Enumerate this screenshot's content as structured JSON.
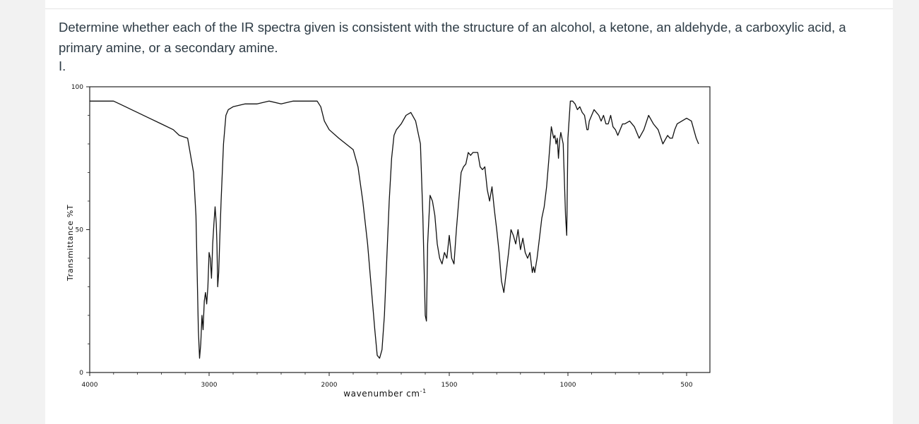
{
  "question": {
    "text": "Determine whether each of the IR spectra given is consistent with the structure of an alcohol, a ketone, an aldehyde, a carboxylic acid, a primary amine, or a secondary amine.",
    "part_label": "I."
  },
  "chart_data": {
    "type": "line",
    "title": "",
    "xlabel": "wavenumber cm",
    "xlabel_superscript": "-1",
    "ylabel": "Transmittance %T",
    "xlim": [
      4000,
      450
    ],
    "ylim": [
      0,
      100
    ],
    "x_tick_labels": [
      "4000",
      "3000",
      "2000",
      "1500",
      "1000",
      "500"
    ],
    "y_tick_labels": [
      "0",
      "50",
      "100"
    ],
    "x_axis_scale": "piecewise: 4000-2000 at half scale of 2000-450",
    "grid": false,
    "series": [
      {
        "points": [
          [
            4000,
            95
          ],
          [
            3900,
            95
          ],
          [
            3800,
            95
          ],
          [
            3750,
            94
          ],
          [
            3700,
            93
          ],
          [
            3650,
            92
          ],
          [
            3600,
            91
          ],
          [
            3500,
            89
          ],
          [
            3400,
            87
          ],
          [
            3300,
            85
          ],
          [
            3250,
            83
          ],
          [
            3180,
            82
          ],
          [
            3130,
            70
          ],
          [
            3110,
            55
          ],
          [
            3100,
            35
          ],
          [
            3090,
            15
          ],
          [
            3080,
            5
          ],
          [
            3070,
            10
          ],
          [
            3060,
            20
          ],
          [
            3050,
            15
          ],
          [
            3040,
            25
          ],
          [
            3030,
            28
          ],
          [
            3020,
            24
          ],
          [
            3010,
            30
          ],
          [
            3000,
            42
          ],
          [
            2990,
            40
          ],
          [
            2980,
            33
          ],
          [
            2970,
            45
          ],
          [
            2960,
            52
          ],
          [
            2950,
            58
          ],
          [
            2940,
            52
          ],
          [
            2935,
            45
          ],
          [
            2928,
            30
          ],
          [
            2920,
            35
          ],
          [
            2910,
            48
          ],
          [
            2900,
            60
          ],
          [
            2880,
            80
          ],
          [
            2860,
            90
          ],
          [
            2840,
            92
          ],
          [
            2800,
            93
          ],
          [
            2700,
            94
          ],
          [
            2600,
            94
          ],
          [
            2500,
            95
          ],
          [
            2400,
            94
          ],
          [
            2300,
            95
          ],
          [
            2200,
            95
          ],
          [
            2150,
            95
          ],
          [
            2100,
            95
          ],
          [
            2070,
            93
          ],
          [
            2040,
            88
          ],
          [
            2000,
            85
          ],
          [
            1960,
            82
          ],
          [
            1930,
            80
          ],
          [
            1900,
            78
          ],
          [
            1880,
            72
          ],
          [
            1860,
            60
          ],
          [
            1840,
            45
          ],
          [
            1820,
            25
          ],
          [
            1810,
            15
          ],
          [
            1800,
            6
          ],
          [
            1790,
            5
          ],
          [
            1780,
            8
          ],
          [
            1770,
            20
          ],
          [
            1760,
            40
          ],
          [
            1750,
            60
          ],
          [
            1740,
            75
          ],
          [
            1730,
            83
          ],
          [
            1720,
            85
          ],
          [
            1700,
            87
          ],
          [
            1680,
            90
          ],
          [
            1660,
            91
          ],
          [
            1640,
            88
          ],
          [
            1620,
            80
          ],
          [
            1610,
            55
          ],
          [
            1600,
            20
          ],
          [
            1595,
            18
          ],
          [
            1590,
            45
          ],
          [
            1580,
            62
          ],
          [
            1570,
            60
          ],
          [
            1560,
            55
          ],
          [
            1550,
            45
          ],
          [
            1540,
            40
          ],
          [
            1530,
            38
          ],
          [
            1520,
            42
          ],
          [
            1510,
            40
          ],
          [
            1500,
            48
          ],
          [
            1490,
            40
          ],
          [
            1480,
            38
          ],
          [
            1470,
            50
          ],
          [
            1460,
            60
          ],
          [
            1450,
            70
          ],
          [
            1440,
            72
          ],
          [
            1430,
            73
          ],
          [
            1420,
            77
          ],
          [
            1410,
            76
          ],
          [
            1400,
            77
          ],
          [
            1390,
            77
          ],
          [
            1380,
            77
          ],
          [
            1370,
            72
          ],
          [
            1360,
            71
          ],
          [
            1350,
            72
          ],
          [
            1340,
            64
          ],
          [
            1330,
            60
          ],
          [
            1320,
            65
          ],
          [
            1310,
            57
          ],
          [
            1300,
            50
          ],
          [
            1290,
            42
          ],
          [
            1280,
            32
          ],
          [
            1270,
            28
          ],
          [
            1260,
            35
          ],
          [
            1250,
            42
          ],
          [
            1240,
            50
          ],
          [
            1230,
            48
          ],
          [
            1220,
            45
          ],
          [
            1210,
            50
          ],
          [
            1200,
            43
          ],
          [
            1190,
            47
          ],
          [
            1180,
            42
          ],
          [
            1170,
            40
          ],
          [
            1160,
            42
          ],
          [
            1150,
            35
          ],
          [
            1145,
            37
          ],
          [
            1140,
            35
          ],
          [
            1130,
            40
          ],
          [
            1120,
            47
          ],
          [
            1110,
            54
          ],
          [
            1100,
            58
          ],
          [
            1090,
            65
          ],
          [
            1080,
            75
          ],
          [
            1070,
            86
          ],
          [
            1060,
            82
          ],
          [
            1055,
            83
          ],
          [
            1050,
            80
          ],
          [
            1045,
            82
          ],
          [
            1040,
            75
          ],
          [
            1035,
            81
          ],
          [
            1030,
            84
          ],
          [
            1020,
            80
          ],
          [
            1010,
            55
          ],
          [
            1005,
            48
          ],
          [
            1000,
            82
          ],
          [
            990,
            95
          ],
          [
            980,
            95
          ],
          [
            970,
            94
          ],
          [
            960,
            92
          ],
          [
            950,
            93
          ],
          [
            940,
            91
          ],
          [
            930,
            90
          ],
          [
            920,
            85
          ],
          [
            915,
            85
          ],
          [
            910,
            88
          ],
          [
            900,
            90
          ],
          [
            890,
            92
          ],
          [
            870,
            90
          ],
          [
            860,
            88
          ],
          [
            850,
            90
          ],
          [
            840,
            87
          ],
          [
            830,
            87
          ],
          [
            820,
            90
          ],
          [
            810,
            86
          ],
          [
            800,
            85
          ],
          [
            790,
            83
          ],
          [
            770,
            87
          ],
          [
            760,
            87
          ],
          [
            740,
            88
          ],
          [
            720,
            86
          ],
          [
            700,
            82
          ],
          [
            680,
            85
          ],
          [
            660,
            90
          ],
          [
            640,
            87
          ],
          [
            620,
            85
          ],
          [
            600,
            80
          ],
          [
            580,
            83
          ],
          [
            570,
            82
          ],
          [
            560,
            82
          ],
          [
            550,
            85
          ],
          [
            540,
            87
          ],
          [
            520,
            88
          ],
          [
            500,
            89
          ],
          [
            480,
            88
          ],
          [
            470,
            85
          ],
          [
            460,
            82
          ],
          [
            450,
            80
          ]
        ]
      }
    ]
  }
}
